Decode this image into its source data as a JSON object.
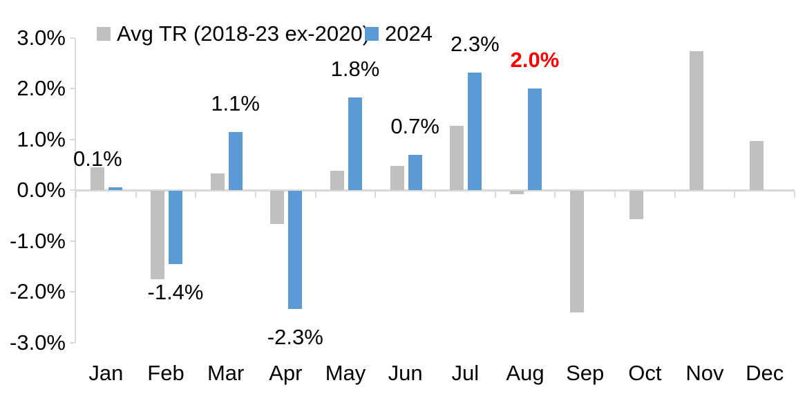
{
  "chart_data": {
    "type": "bar",
    "title": "",
    "categories": [
      "Jan",
      "Feb",
      "Mar",
      "Apr",
      "May",
      "Jun",
      "Jul",
      "Aug",
      "Sep",
      "Oct",
      "Nov",
      "Dec"
    ],
    "series": [
      {
        "name": "Avg TR (2018-23 ex-2020)",
        "color": "#BFBFBF",
        "values": [
          0.45,
          -1.74,
          0.32,
          -0.65,
          0.38,
          0.48,
          1.26,
          -0.07,
          -2.4,
          -0.56,
          2.73,
          0.97
        ]
      },
      {
        "name": "2024",
        "color": "#5B9BD5",
        "values": [
          0.05,
          -1.44,
          1.14,
          -2.33,
          1.82,
          0.69,
          2.31,
          2.0,
          null,
          null,
          null,
          null
        ]
      }
    ],
    "data_labels": [
      {
        "month_index": 0,
        "text": "0.1%",
        "color": "#000000",
        "bold": false,
        "side": "above",
        "x_series": 0,
        "y_series": 1
      },
      {
        "month_index": 1,
        "text": "-1.4%",
        "color": "#000000",
        "bold": false,
        "side": "below",
        "x_series": 1,
        "y_series": 1
      },
      {
        "month_index": 2,
        "text": "1.1%",
        "color": "#000000",
        "bold": false,
        "side": "above",
        "x_series": 1,
        "y_series": 1
      },
      {
        "month_index": 3,
        "text": "-2.3%",
        "color": "#000000",
        "bold": false,
        "side": "below",
        "x_series": 1,
        "y_series": 1
      },
      {
        "month_index": 4,
        "text": "1.8%",
        "color": "#000000",
        "bold": false,
        "side": "above",
        "x_series": 1,
        "y_series": 1
      },
      {
        "month_index": 5,
        "text": "0.7%",
        "color": "#000000",
        "bold": false,
        "side": "above",
        "x_series": 1,
        "y_series": 1
      },
      {
        "month_index": 6,
        "text": "2.3%",
        "color": "#000000",
        "bold": false,
        "side": "above",
        "x_series": 1,
        "y_series": 1
      },
      {
        "month_index": 7,
        "text": "2.0%",
        "color": "#FF0000",
        "bold": true,
        "side": "above",
        "x_series": 1,
        "y_series": 1
      }
    ],
    "y_axis": {
      "tick_labels": [
        "3.0%",
        "2.0%",
        "1.0%",
        "0.0%",
        "-1.0%",
        "-2.0%",
        "-3.0%"
      ],
      "tick_values": [
        3,
        2,
        1,
        0,
        -1,
        -2,
        -3
      ],
      "ylim": [
        -3,
        3
      ]
    },
    "legend_position": "top",
    "grid": false,
    "axis_color": "#D9D9D9",
    "text_color": "#000000",
    "highlight_color": "#FF0000"
  }
}
